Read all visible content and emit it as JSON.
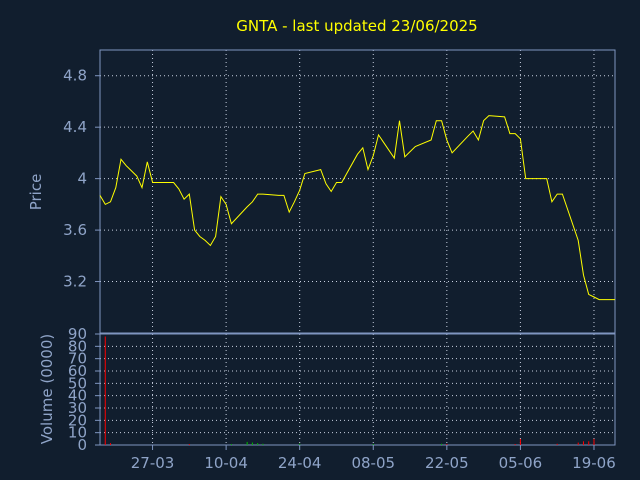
{
  "chart_data": {
    "type": "line",
    "title": "GNTA - last updated 23/06/2025",
    "colors": {
      "background": "#111e2e",
      "frame": "#7f95c0",
      "grid": "#c8d0e0",
      "axis_text": "#8fa4c8",
      "title": "#ffff00",
      "price_line": "#ffff00",
      "volume_down": "#ff0000",
      "volume_up": "#00bb00"
    },
    "x_tick_labels": [
      "27-03",
      "10-04",
      "24-04",
      "08-05",
      "22-05",
      "05-06",
      "19-06"
    ],
    "x_tick_dates": [
      "2025-03-27",
      "2025-04-10",
      "2025-04-24",
      "2025-05-08",
      "2025-05-22",
      "2025-06-05",
      "2025-06-19"
    ],
    "xlim": [
      "2025-03-17",
      "2025-06-23"
    ],
    "price_panel": {
      "ylabel": "Price",
      "ylim": [
        2.8,
        5.0
      ],
      "yticks": [
        "3.2",
        "3.6",
        "4",
        "4.4",
        "4.8"
      ],
      "grid": true,
      "series": [
        {
          "x": [
            "2025-03-17",
            "2025-03-18",
            "2025-03-19",
            "2025-03-20",
            "2025-03-21",
            "2025-03-22",
            "2025-03-23",
            "2025-03-24",
            "2025-03-25",
            "2025-03-26",
            "2025-03-27",
            "2025-03-28",
            "2025-03-29",
            "2025-03-30",
            "2025-03-31",
            "2025-04-01",
            "2025-04-02",
            "2025-04-03",
            "2025-04-04",
            "2025-04-05",
            "2025-04-06",
            "2025-04-07",
            "2025-04-08",
            "2025-04-09",
            "2025-04-10",
            "2025-04-11",
            "2025-04-14",
            "2025-04-15",
            "2025-04-16",
            "2025-04-17",
            "2025-04-20",
            "2025-04-21",
            "2025-04-22",
            "2025-04-23",
            "2025-04-24",
            "2025-04-25",
            "2025-04-28",
            "2025-04-29",
            "2025-04-30",
            "2025-05-01",
            "2025-05-02",
            "2025-05-05",
            "2025-05-06",
            "2025-05-07",
            "2025-05-08",
            "2025-05-09",
            "2025-05-12",
            "2025-05-13",
            "2025-05-14",
            "2025-05-15",
            "2025-05-16",
            "2025-05-19",
            "2025-05-20",
            "2025-05-21",
            "2025-05-22",
            "2025-05-23",
            "2025-05-26",
            "2025-05-27",
            "2025-05-28",
            "2025-05-29",
            "2025-05-30",
            "2025-06-02",
            "2025-06-03",
            "2025-06-04",
            "2025-06-05",
            "2025-06-06",
            "2025-06-09",
            "2025-06-10",
            "2025-06-11",
            "2025-06-12",
            "2025-06-13",
            "2025-06-16",
            "2025-06-17",
            "2025-06-18",
            "2025-06-19",
            "2025-06-20",
            "2025-06-21",
            "2025-06-23"
          ],
          "values": [
            3.87,
            3.8,
            3.82,
            3.93,
            4.15,
            4.1,
            4.06,
            4.02,
            3.93,
            4.13,
            3.97,
            3.97,
            3.97,
            3.97,
            3.97,
            3.92,
            3.84,
            3.88,
            3.6,
            3.55,
            3.52,
            3.48,
            3.55,
            3.86,
            3.8,
            3.65,
            3.78,
            3.82,
            3.88,
            3.88,
            3.87,
            3.87,
            3.74,
            3.82,
            3.91,
            4.04,
            4.07,
            3.96,
            3.9,
            3.97,
            3.97,
            4.19,
            4.24,
            4.07,
            4.18,
            4.34,
            4.16,
            4.45,
            4.17,
            4.21,
            4.25,
            4.3,
            4.45,
            4.45,
            4.3,
            4.2,
            4.33,
            4.37,
            4.3,
            4.45,
            4.49,
            4.48,
            4.35,
            4.35,
            4.31,
            4.0,
            4.0,
            4.0,
            3.82,
            3.88,
            3.88,
            3.52,
            3.25,
            3.1,
            3.08,
            3.06,
            3.06,
            3.06
          ]
        }
      ]
    },
    "volume_panel": {
      "ylabel": "Volume (0000)",
      "ylim": [
        0,
        90
      ],
      "yticks": [
        "0",
        "10",
        "20",
        "30",
        "40",
        "50",
        "60",
        "70",
        "80",
        "90"
      ],
      "grid": true,
      "bars": [
        {
          "x": "2025-03-18",
          "value": 88,
          "color": "down"
        },
        {
          "x": "2025-03-19",
          "value": 1.5,
          "color": "down"
        },
        {
          "x": "2025-04-03",
          "value": 0.8,
          "color": "down"
        },
        {
          "x": "2025-04-11",
          "value": 0.8,
          "color": "up"
        },
        {
          "x": "2025-04-14",
          "value": 2.5,
          "color": "up"
        },
        {
          "x": "2025-04-15",
          "value": 2,
          "color": "up"
        },
        {
          "x": "2025-04-16",
          "value": 1.5,
          "color": "up"
        },
        {
          "x": "2025-04-17",
          "value": 1,
          "color": "up"
        },
        {
          "x": "2025-04-24",
          "value": 1,
          "color": "up"
        },
        {
          "x": "2025-05-08",
          "value": 0.8,
          "color": "up"
        },
        {
          "x": "2025-05-21",
          "value": 1,
          "color": "up"
        },
        {
          "x": "2025-05-22",
          "value": 0.8,
          "color": "down"
        },
        {
          "x": "2025-06-04",
          "value": 0.8,
          "color": "down"
        },
        {
          "x": "2025-06-05",
          "value": 5,
          "color": "down"
        },
        {
          "x": "2025-06-12",
          "value": 1,
          "color": "down"
        },
        {
          "x": "2025-06-16",
          "value": 2,
          "color": "down"
        },
        {
          "x": "2025-06-17",
          "value": 3,
          "color": "down"
        },
        {
          "x": "2025-06-18",
          "value": 3,
          "color": "down"
        },
        {
          "x": "2025-06-19",
          "value": 5,
          "color": "down"
        }
      ]
    }
  }
}
